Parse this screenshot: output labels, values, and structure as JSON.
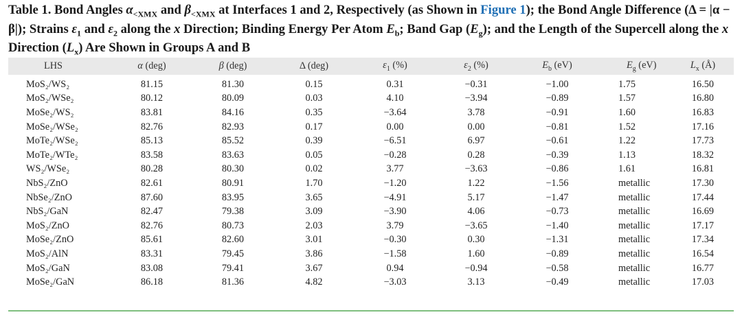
{
  "caption": {
    "p1": "Table 1. Bond Angles ",
    "alpha": "α",
    "sub1": "<XMX",
    "p2": " and ",
    "beta": "β",
    "sub2": "<XMX",
    "p3": " at Interfaces 1 and 2, Respectively (as Shown in ",
    "link": "Figure 1",
    "p4": "); the Bond Angle Difference (Δ = |α − β|); Strains ",
    "eps1": "ε",
    "eps1_sub": "1",
    "p5": " and ",
    "eps2": "ε",
    "eps2_sub": "2",
    "p6": " along the ",
    "x": "x",
    "p7": " Direction; Binding Energy Per Atom ",
    "eb": "E",
    "eb_sub": "b",
    "p8": "; Band Gap (",
    "eg": "E",
    "eg_sub": "g",
    "p9": "); and the Length of the Supercell along the ",
    "x2": "x",
    "p10": " Direction (",
    "lx": "L",
    "lx_sub": "x",
    "p11": ") Are Shown in Groups A and B"
  },
  "headers": {
    "lhs": "LHS",
    "alpha": "α",
    "alpha_unit": " (deg)",
    "beta": "β",
    "beta_unit": " (deg)",
    "delta": "Δ (deg)",
    "eps1": "ε",
    "eps1_sub": "1",
    "eps1_unit": " (%)",
    "eps2": "ε",
    "eps2_sub": "2",
    "eps2_unit": " (%)",
    "eb": "E",
    "eb_sub": "b",
    "eb_unit": " (eV)",
    "eg": "E",
    "eg_sub": "g",
    "eg_unit": " (eV)",
    "lx": "L",
    "lx_sub": "x",
    "lx_unit": " (Å)"
  },
  "rows": [
    {
      "lhs": "MoS₂/WS₂",
      "alpha": "81.15",
      "beta": "81.30",
      "delta": "0.15",
      "e1": "0.31",
      "e2": "−0.31",
      "eb": "−1.00",
      "eg": "1.75",
      "lx": "16.50"
    },
    {
      "lhs": "MoS₂/WSe₂",
      "alpha": "80.12",
      "beta": "80.09",
      "delta": "0.03",
      "e1": "4.10",
      "e2": "−3.94",
      "eb": "−0.89",
      "eg": "1.57",
      "lx": "16.80"
    },
    {
      "lhs": "MoSe₂/WS₂",
      "alpha": "83.81",
      "beta": "84.16",
      "delta": "0.35",
      "e1": "−3.64",
      "e2": "3.78",
      "eb": "−0.91",
      "eg": "1.60",
      "lx": "16.83"
    },
    {
      "lhs": "MoSe₂/WSe₂",
      "alpha": "82.76",
      "beta": "82.93",
      "delta": "0.17",
      "e1": "0.00",
      "e2": "0.00",
      "eb": "−0.81",
      "eg": "1.52",
      "lx": "17.16"
    },
    {
      "lhs": "MoTe₂/WSe₂",
      "alpha": "85.13",
      "beta": "85.52",
      "delta": "0.39",
      "e1": "−6.51",
      "e2": "6.97",
      "eb": "−0.61",
      "eg": "1.22",
      "lx": "17.73"
    },
    {
      "lhs": "MoTe₂/WTe₂",
      "alpha": "83.58",
      "beta": "83.63",
      "delta": "0.05",
      "e1": "−0.28",
      "e2": "0.28",
      "eb": "−0.39",
      "eg": "1.13",
      "lx": "18.32"
    },
    {
      "lhs": "WS₂/WSe₂",
      "alpha": "80.28",
      "beta": "80.30",
      "delta": "0.02",
      "e1": "3.77",
      "e2": "−3.63",
      "eb": "−0.86",
      "eg": "1.61",
      "lx": "16.81"
    },
    {
      "lhs": "NbS₂/ZnO",
      "alpha": "82.61",
      "beta": "80.91",
      "delta": "1.70",
      "e1": "−1.20",
      "e2": "1.22",
      "eb": "−1.56",
      "eg": "metallic",
      "lx": "17.30"
    },
    {
      "lhs": "NbSe₂/ZnO",
      "alpha": "87.60",
      "beta": "83.95",
      "delta": "3.65",
      "e1": "−4.91",
      "e2": "5.17",
      "eb": "−1.47",
      "eg": "metallic",
      "lx": "17.44"
    },
    {
      "lhs": "NbS₂/GaN",
      "alpha": "82.47",
      "beta": "79.38",
      "delta": "3.09",
      "e1": "−3.90",
      "e2": "4.06",
      "eb": "−0.73",
      "eg": "metallic",
      "lx": "16.69"
    },
    {
      "lhs": "MoS₂/ZnO",
      "alpha": "82.76",
      "beta": "80.73",
      "delta": "2.03",
      "e1": "3.79",
      "e2": "−3.65",
      "eb": "−1.40",
      "eg": "metallic",
      "lx": "17.17"
    },
    {
      "lhs": "MoSe₂/ZnO",
      "alpha": "85.61",
      "beta": "82.60",
      "delta": "3.01",
      "e1": "−0.30",
      "e2": "0.30",
      "eb": "−1.31",
      "eg": "metallic",
      "lx": "17.34"
    },
    {
      "lhs": "MoS₂/AlN",
      "alpha": "83.31",
      "beta": "79.45",
      "delta": "3.86",
      "e1": "−1.58",
      "e2": "1.60",
      "eb": "−0.89",
      "eg": "metallic",
      "lx": "16.54"
    },
    {
      "lhs": "MoS₂/GaN",
      "alpha": "83.08",
      "beta": "79.41",
      "delta": "3.67",
      "e1": "0.94",
      "e2": "−0.94",
      "eb": "−0.58",
      "eg": "metallic",
      "lx": "16.77"
    },
    {
      "lhs": "MoSe₂/GaN",
      "alpha": "86.18",
      "beta": "81.36",
      "delta": "4.82",
      "e1": "−3.03",
      "e2": "3.13",
      "eb": "−0.49",
      "eg": "metallic",
      "lx": "17.03"
    }
  ],
  "colors": {
    "link": "#1f6fb5",
    "header_bg": "#e9e9e9",
    "bottom_rule": "#7fbf7f"
  }
}
